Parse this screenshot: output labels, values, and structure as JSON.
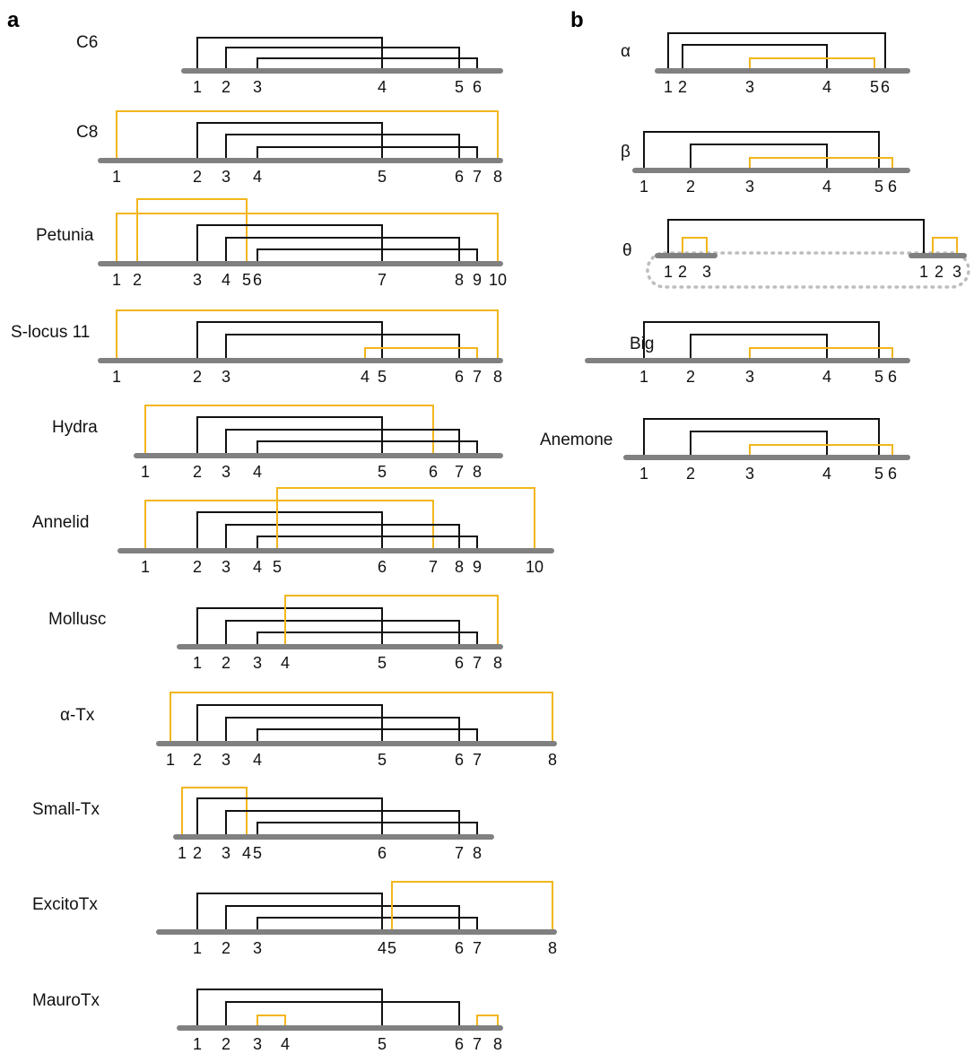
{
  "panels": [
    {
      "label": "a"
    },
    {
      "label": "b"
    }
  ],
  "colors": {
    "backbone": "#808080",
    "bond": "#111111",
    "highlight": "#F2B61C",
    "group_outline": "#BDBDBD"
  },
  "diagrams": [
    {
      "id": "c6",
      "name": "C6",
      "labels": [
        "1",
        "2",
        "3",
        "4",
        "5",
        "6"
      ],
      "bonds": [
        [
          "1",
          "4",
          "black"
        ],
        [
          "2",
          "5",
          "black"
        ],
        [
          "3",
          "6",
          "black"
        ]
      ]
    },
    {
      "id": "c8",
      "name": "C8",
      "labels": [
        "1",
        "2",
        "3",
        "4",
        "5",
        "6",
        "7",
        "8"
      ],
      "bonds": [
        [
          "1",
          "8",
          "yellow"
        ],
        [
          "2",
          "5",
          "black"
        ],
        [
          "3",
          "6",
          "black"
        ],
        [
          "4",
          "7",
          "black"
        ]
      ]
    },
    {
      "id": "petunia",
      "name": "Petunia",
      "labels": [
        "1",
        "2",
        "3",
        "4",
        "5",
        "6",
        "7",
        "8",
        "9",
        "10"
      ],
      "bonds": [
        [
          "1",
          "10",
          "yellow"
        ],
        [
          "2",
          "5",
          "yellow"
        ],
        [
          "3",
          "7",
          "black"
        ],
        [
          "4",
          "8",
          "black"
        ],
        [
          "6",
          "9",
          "black"
        ]
      ]
    },
    {
      "id": "s-locus-11",
      "name": "S-locus 11",
      "labels": [
        "1",
        "2",
        "3",
        "4",
        "5",
        "6",
        "7",
        "8"
      ],
      "bonds": [
        [
          "1",
          "8",
          "yellow"
        ],
        [
          "2",
          "5",
          "black"
        ],
        [
          "3",
          "6",
          "black"
        ],
        [
          "4",
          "7",
          "yellow"
        ]
      ]
    },
    {
      "id": "hydra",
      "name": "Hydra",
      "labels": [
        "1",
        "2",
        "3",
        "4",
        "5",
        "6",
        "7",
        "8"
      ],
      "bonds": [
        [
          "1",
          "6",
          "yellow"
        ],
        [
          "2",
          "5",
          "black"
        ],
        [
          "3",
          "7",
          "black"
        ],
        [
          "4",
          "8",
          "black"
        ]
      ]
    },
    {
      "id": "annelid",
      "name": "Annelid",
      "labels": [
        "1",
        "2",
        "3",
        "4",
        "5",
        "6",
        "7",
        "8",
        "9",
        "10"
      ],
      "bonds": [
        [
          "1",
          "7",
          "yellow"
        ],
        [
          "2",
          "6",
          "black"
        ],
        [
          "3",
          "8",
          "black"
        ],
        [
          "4",
          "9",
          "black"
        ],
        [
          "5",
          "10",
          "yellow"
        ]
      ]
    },
    {
      "id": "mollusc",
      "name": "Mollusc",
      "labels": [
        "1",
        "2",
        "3",
        "4",
        "5",
        "6",
        "7",
        "8"
      ],
      "bonds": [
        [
          "1",
          "5",
          "black"
        ],
        [
          "2",
          "6",
          "black"
        ],
        [
          "3",
          "7",
          "black"
        ],
        [
          "4",
          "8",
          "yellow"
        ]
      ]
    },
    {
      "id": "alpha-tx",
      "name": "α-Tx",
      "labels": [
        "1",
        "2",
        "3",
        "4",
        "5",
        "6",
        "7",
        "8"
      ],
      "bonds": [
        [
          "1",
          "8",
          "yellow"
        ],
        [
          "2",
          "5",
          "black"
        ],
        [
          "3",
          "6",
          "black"
        ],
        [
          "4",
          "7",
          "black"
        ]
      ]
    },
    {
      "id": "small-tx",
      "name": "Small-Tx",
      "labels": [
        "1",
        "2",
        "3",
        "4",
        "5",
        "6",
        "7",
        "8"
      ],
      "bonds": [
        [
          "1",
          "4",
          "yellow"
        ],
        [
          "2",
          "6",
          "black"
        ],
        [
          "3",
          "7",
          "black"
        ],
        [
          "5",
          "8",
          "black"
        ]
      ]
    },
    {
      "id": "excitotx",
      "name": "ExcitoTx",
      "labels": [
        "1",
        "2",
        "3",
        "4",
        "5",
        "6",
        "7",
        "8"
      ],
      "bonds": [
        [
          "1",
          "4",
          "black"
        ],
        [
          "2",
          "6",
          "black"
        ],
        [
          "3",
          "7",
          "black"
        ],
        [
          "5",
          "8",
          "yellow"
        ]
      ]
    },
    {
      "id": "maurotx",
      "name": "MauroTx",
      "labels": [
        "1",
        "2",
        "3",
        "4",
        "5",
        "6",
        "7",
        "8"
      ],
      "bonds": [
        [
          "1",
          "5",
          "black"
        ],
        [
          "2",
          "6",
          "black"
        ],
        [
          "3",
          "4",
          "yellow"
        ],
        [
          "7",
          "8",
          "yellow"
        ]
      ]
    },
    {
      "id": "alpha-def",
      "name": "α",
      "labels": [
        "1",
        "2",
        "3",
        "4",
        "5",
        "6"
      ],
      "bonds": [
        [
          "1",
          "6",
          "black"
        ],
        [
          "2",
          "4",
          "black"
        ],
        [
          "3",
          "5",
          "yellow"
        ]
      ]
    },
    {
      "id": "beta-def",
      "name": "β",
      "labels": [
        "1",
        "2",
        "3",
        "4",
        "5",
        "6"
      ],
      "bonds": [
        [
          "1",
          "5",
          "black"
        ],
        [
          "2",
          "4",
          "black"
        ],
        [
          "3",
          "6",
          "yellow"
        ]
      ]
    },
    {
      "id": "theta-def",
      "name": "θ",
      "labels": [
        "1",
        "2",
        "3",
        "1",
        "2",
        "3"
      ],
      "bonds": [
        [
          "1",
          "1",
          "black"
        ],
        [
          "2",
          "3",
          "yellow"
        ],
        [
          "2",
          "3",
          "yellow"
        ]
      ]
    },
    {
      "id": "big-def",
      "name": "Big",
      "labels": [
        "1",
        "2",
        "3",
        "4",
        "5",
        "6"
      ],
      "bonds": [
        [
          "1",
          "5",
          "black"
        ],
        [
          "2",
          "4",
          "black"
        ],
        [
          "3",
          "6",
          "yellow"
        ]
      ]
    },
    {
      "id": "anemone",
      "name": "Anemone",
      "labels": [
        "1",
        "2",
        "3",
        "4",
        "5",
        "6"
      ],
      "bonds": [
        [
          "1",
          "5",
          "black"
        ],
        [
          "2",
          "4",
          "black"
        ],
        [
          "3",
          "6",
          "yellow"
        ]
      ]
    }
  ]
}
